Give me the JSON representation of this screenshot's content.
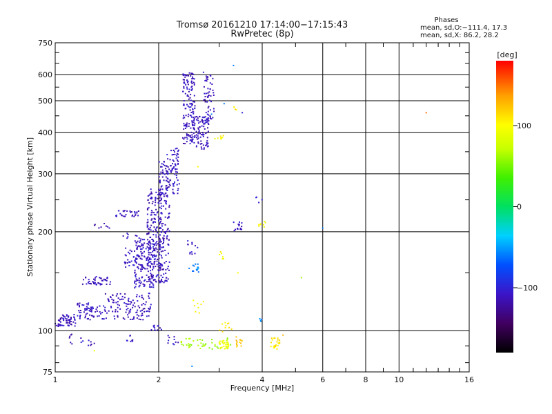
{
  "chart_data": {
    "type": "scatter",
    "title": "Tromsø 20161210 17:14:00−17:15:43",
    "subtitle": "RwPretec (8p)",
    "xlabel": "Frequency [MHz]",
    "ylabel": "Stationary phase Virtual Height [km]",
    "xscale": "log",
    "yscale": "log",
    "xlim": [
      1,
      16
    ],
    "ylim": [
      75,
      750
    ],
    "xticks": [
      1,
      2,
      4,
      6,
      8,
      10,
      16
    ],
    "xtick_labels": [
      "1",
      "2",
      "4",
      "6",
      "8",
      "10",
      "16"
    ],
    "yticks": [
      75,
      100,
      200,
      300,
      400,
      500,
      600,
      750
    ],
    "ytick_labels": [
      "75",
      "100",
      "200",
      "300",
      "400",
      "500",
      "600",
      "750"
    ],
    "grid": true,
    "legend": {
      "heading": "Phases",
      "line1": "mean, sd,O:−111.4, 17.3",
      "line2": "mean, sd,X:  86.2, 28.2"
    },
    "colorbar": {
      "label": "[deg]",
      "range": [
        -180,
        180
      ],
      "ticks": [
        -100,
        0,
        100
      ],
      "tick_labels": [
        "−100",
        "0",
        "100"
      ]
    },
    "point_groups": [
      {
        "f_range": [
          1.0,
          1.15
        ],
        "h_range": [
          103,
          112
        ],
        "count": 60,
        "phase": -112
      },
      {
        "f_range": [
          1.15,
          1.4
        ],
        "h_range": [
          108,
          122
        ],
        "count": 70,
        "phase": -108
      },
      {
        "f_range": [
          1.4,
          1.9
        ],
        "h_range": [
          108,
          130
        ],
        "count": 120,
        "phase": -112
      },
      {
        "f_range": [
          1.2,
          1.45
        ],
        "h_range": [
          138,
          146
        ],
        "count": 45,
        "phase": -112
      },
      {
        "f_range": [
          1.3,
          1.45
        ],
        "h_range": [
          205,
          212
        ],
        "count": 8,
        "phase": -118
      },
      {
        "f_range": [
          1.5,
          1.75
        ],
        "h_range": [
          222,
          232
        ],
        "count": 30,
        "phase": -112
      },
      {
        "f_range": [
          1.55,
          1.8
        ],
        "h_range": [
          155,
          200
        ],
        "count": 50,
        "phase": -110
      },
      {
        "f_range": [
          1.7,
          1.95
        ],
        "h_range": [
          135,
          190
        ],
        "count": 150,
        "phase": -108
      },
      {
        "f_range": [
          1.85,
          2.05
        ],
        "h_range": [
          140,
          270
        ],
        "count": 200,
        "phase": -112
      },
      {
        "f_range": [
          2.0,
          2.15
        ],
        "h_range": [
          140,
          330
        ],
        "count": 150,
        "phase": -110
      },
      {
        "f_range": [
          2.1,
          2.3
        ],
        "h_range": [
          260,
          360
        ],
        "count": 80,
        "phase": -108
      },
      {
        "f_range": [
          2.35,
          2.55
        ],
        "h_range": [
          370,
          610
        ],
        "count": 150,
        "phase": -112
      },
      {
        "f_range": [
          2.5,
          2.8
        ],
        "h_range": [
          355,
          450
        ],
        "count": 100,
        "phase": -110
      },
      {
        "f_range": [
          2.7,
          2.9
        ],
        "h_range": [
          440,
          600
        ],
        "count": 50,
        "phase": -112
      },
      {
        "f_range": [
          2.4,
          2.6
        ],
        "h_range": [
          170,
          190
        ],
        "count": 12,
        "phase": -110
      },
      {
        "f_range": [
          2.45,
          2.65
        ],
        "h_range": [
          150,
          160
        ],
        "count": 15,
        "phase": -60
      },
      {
        "f_range": [
          3.3,
          3.5
        ],
        "h_range": [
          200,
          215
        ],
        "count": 15,
        "phase": -108
      },
      {
        "f_range": [
          1.1,
          1.3
        ],
        "h_range": [
          90,
          98
        ],
        "count": 15,
        "phase": -110
      },
      {
        "f_range": [
          1.6,
          1.7
        ],
        "h_range": [
          92,
          97
        ],
        "count": 8,
        "phase": -110
      },
      {
        "f_range": [
          1.9,
          2.05
        ],
        "h_range": [
          100,
          104
        ],
        "count": 12,
        "phase": -110
      },
      {
        "f_range": [
          2.1,
          2.3
        ],
        "h_range": [
          90,
          97
        ],
        "count": 10,
        "phase": -108
      },
      {
        "f_range": [
          2.3,
          3.3
        ],
        "h_range": [
          88,
          95
        ],
        "count": 40,
        "phase": 60
      },
      {
        "f_range": [
          3.0,
          3.2
        ],
        "h_range": [
          88,
          94
        ],
        "count": 30,
        "phase": 90
      },
      {
        "f_range": [
          3.35,
          3.5
        ],
        "h_range": [
          88,
          96
        ],
        "count": 15,
        "phase": 120
      },
      {
        "f_range": [
          4.2,
          4.5
        ],
        "h_range": [
          88,
          95
        ],
        "count": 25,
        "phase": 110
      },
      {
        "f_range": [
          2.9,
          3.1
        ],
        "h_range": [
          380,
          400
        ],
        "count": 8,
        "phase": 100
      },
      {
        "f_range": [
          3.3,
          3.4
        ],
        "h_range": [
          460,
          480
        ],
        "count": 4,
        "phase": 110
      },
      {
        "f_range": [
          3.0,
          3.1
        ],
        "h_range": [
          165,
          175
        ],
        "count": 6,
        "phase": 100
      },
      {
        "f_range": [
          2.5,
          2.7
        ],
        "h_range": [
          113,
          125
        ],
        "count": 8,
        "phase": 100
      },
      {
        "f_range": [
          3.9,
          4.1
        ],
        "h_range": [
          205,
          215
        ],
        "count": 8,
        "phase": 100
      },
      {
        "f_range": [
          3.8,
          4.0
        ],
        "h_range": [
          245,
          255
        ],
        "count": 4,
        "phase": -100
      },
      {
        "f_range": [
          3.9,
          4.0
        ],
        "h_range": [
          105,
          110
        ],
        "count": 4,
        "phase": -60
      },
      {
        "f_range": [
          3.0,
          3.3
        ],
        "h_range": [
          98,
          106
        ],
        "count": 10,
        "phase": 110
      }
    ],
    "isolated_points": [
      {
        "f": 3.3,
        "h": 640,
        "phase": -60
      },
      {
        "f": 3.5,
        "h": 460,
        "phase": -100
      },
      {
        "f": 3.1,
        "h": 490,
        "phase": -60
      },
      {
        "f": 5.2,
        "h": 145,
        "phase": 60
      },
      {
        "f": 6.0,
        "h": 205,
        "phase": -60
      },
      {
        "f": 12.0,
        "h": 460,
        "phase": 150
      },
      {
        "f": 2.85,
        "h": 455,
        "phase": -60
      },
      {
        "f": 2.7,
        "h": 610,
        "phase": -100
      },
      {
        "f": 2.6,
        "h": 315,
        "phase": 100
      },
      {
        "f": 1.3,
        "h": 87,
        "phase": 90
      },
      {
        "f": 1.6,
        "h": 170,
        "phase": -108
      },
      {
        "f": 3.4,
        "h": 150,
        "phase": 100
      },
      {
        "f": 4.6,
        "h": 97,
        "phase": 130
      },
      {
        "f": 2.5,
        "h": 78,
        "phase": -60
      }
    ]
  }
}
